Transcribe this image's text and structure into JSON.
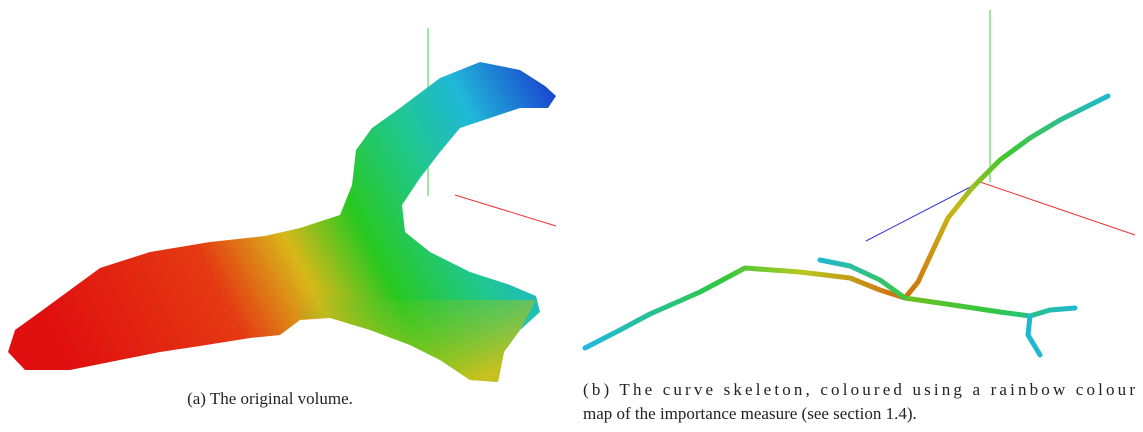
{
  "figure": {
    "panel_a": {
      "caption": "(a) The original volume."
    },
    "panel_b": {
      "caption_lines": [
        "(b) The curve skeleton, coloured using a rainbow colour",
        "map of the importance measure (see section 1.4)."
      ]
    }
  }
}
